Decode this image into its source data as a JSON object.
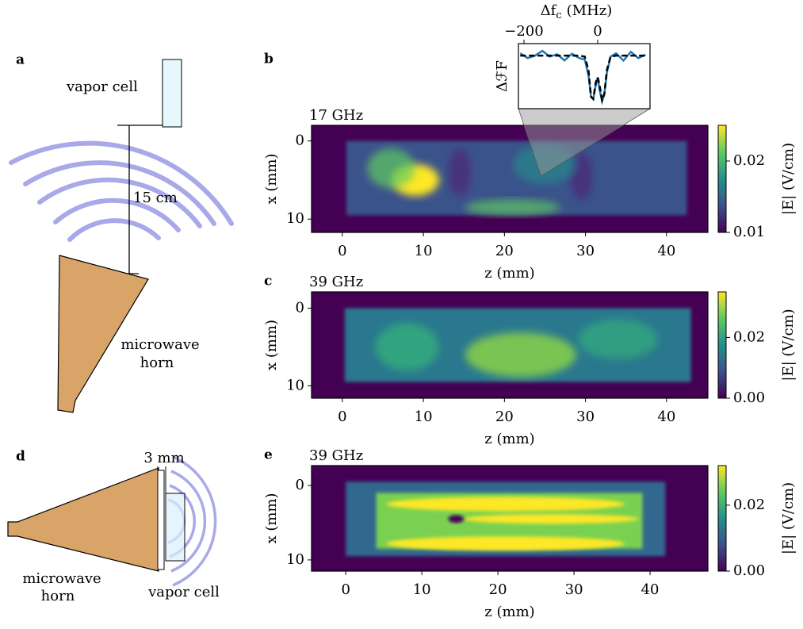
{
  "panels": {
    "a": {
      "label": "a",
      "vapor_cell": "vapor cell",
      "distance": "15 cm",
      "horn": [
        "microwave",
        "horn"
      ]
    },
    "b": {
      "label": "b",
      "title": "17 GHz",
      "xlabel": "z (mm)",
      "ylabel": "x (mm)",
      "xlim": [
        -3.8,
        45.1
      ],
      "xticks": [
        0,
        10,
        20,
        30,
        40
      ],
      "ylim": [
        -2,
        11.7
      ],
      "yticks": [
        0,
        10
      ],
      "colorbar": {
        "label": "|E| (V/cm)",
        "lim": [
          0.01,
          0.025
        ],
        "ticks": [
          0.01,
          0.02
        ]
      },
      "inset": {
        "xlabel": {
          "symbol": "Δf",
          "subscript": "c",
          "unit": "(MHz)"
        },
        "ylabel": "ΔℱF",
        "xlim": [
          -215,
          142
        ],
        "xticks": [
          {
            "value": -200,
            "label": "−200"
          },
          0
        ],
        "ylim": [
          -1.1,
          0.25
        ],
        "x": [
          -210,
          -190,
          -170,
          -150,
          -130,
          -110,
          -90,
          -70,
          -50,
          -35,
          -25,
          -18,
          -12,
          -5,
          0,
          5,
          12,
          18,
          25,
          35,
          50,
          70,
          90,
          110,
          130
        ],
        "series": [
          {
            "color": "#1f77b4",
            "values": [
              0.05,
              -0.05,
              0.0,
              0.1,
              -0.02,
              0.03,
              -0.1,
              0.04,
              -0.05,
              -0.08,
              -0.4,
              -0.85,
              -0.9,
              -0.6,
              -0.45,
              -0.7,
              -0.95,
              -0.8,
              -0.35,
              -0.02,
              0.05,
              -0.1,
              0.08,
              -0.05,
              0.02
            ]
          },
          {
            "color": "#000000",
            "dashed": true,
            "values": [
              0,
              0,
              0,
              0,
              0,
              0,
              0,
              0,
              0,
              -0.02,
              -0.3,
              -0.85,
              -0.9,
              -0.55,
              -0.45,
              -0.6,
              -0.92,
              -0.8,
              -0.3,
              -0.02,
              0,
              0,
              0,
              0,
              0
            ]
          }
        ]
      }
    },
    "c": {
      "label": "c",
      "title": "39 GHz",
      "xlabel": "z (mm)",
      "ylabel": "x (mm)",
      "xlim": [
        -3.8,
        45.1
      ],
      "xticks": [
        0,
        10,
        20,
        30,
        40
      ],
      "ylim": [
        -2.1,
        11.6
      ],
      "yticks": [
        0,
        10
      ],
      "colorbar": {
        "label": "|E| (V/cm)",
        "lim": [
          0,
          0.035
        ],
        "ticks": [
          {
            "value": 0,
            "label": "0.00"
          },
          0.02
        ]
      }
    },
    "d": {
      "label": "d",
      "gap": "3 mm",
      "horn": [
        "microwave",
        "horn"
      ],
      "vapor_cell": "vapor cell"
    },
    "e": {
      "label": "e",
      "title": "39 GHz",
      "xlabel": "z (mm)",
      "ylabel": "x (mm)",
      "xlim": [
        -4.5,
        47.6
      ],
      "xticks": [
        0,
        10,
        20,
        30,
        40
      ],
      "ylim": [
        -2.66,
        11.5
      ],
      "yticks": [
        0,
        10
      ],
      "colorbar": {
        "label": "|E| (V/cm)",
        "lim": [
          0,
          0.032
        ],
        "ticks": [
          {
            "value": 0,
            "label": "0.00"
          },
          0.02
        ]
      }
    }
  }
}
